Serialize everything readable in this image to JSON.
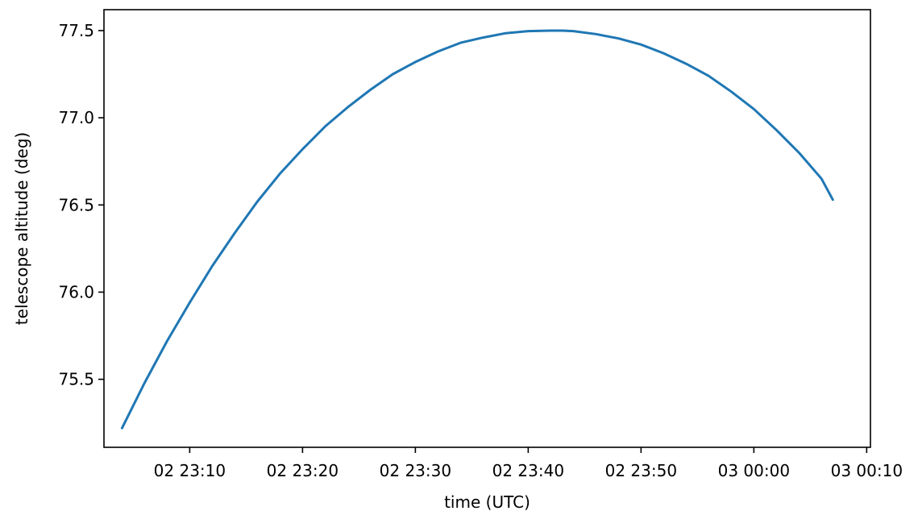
{
  "chart_data": {
    "type": "line",
    "title": "",
    "xlabel": "time (UTC)",
    "ylabel": "telescope altitude (deg)",
    "x_unit": "minutes",
    "xlim": [
      "02 23:02:24",
      "03 00:10:20"
    ],
    "ylim": [
      75.11,
      77.62
    ],
    "x_ticks": [
      "02 23:10",
      "02 23:20",
      "02 23:30",
      "02 23:40",
      "02 23:50",
      "03 00:00",
      "03 00:10"
    ],
    "y_ticks": [
      "75.5",
      "76.0",
      "76.5",
      "77.0",
      "77.5"
    ],
    "grid": false,
    "legend": "none",
    "series": [
      {
        "color": "#1f77b4",
        "x": [
          "02 23:04",
          "02 23:06",
          "02 23:08",
          "02 23:10",
          "02 23:12",
          "02 23:14",
          "02 23:16",
          "02 23:18",
          "02 23:20",
          "02 23:22",
          "02 23:24",
          "02 23:26",
          "02 23:28",
          "02 23:30",
          "02 23:32",
          "02 23:34",
          "02 23:36",
          "02 23:38",
          "02 23:40",
          "02 23:42",
          "02 23:43",
          "02 23:44",
          "02 23:46",
          "02 23:48",
          "02 23:50",
          "02 23:52",
          "02 23:54",
          "02 23:56",
          "02 23:58",
          "03 00:00",
          "03 00:02",
          "03 00:04",
          "03 00:06",
          "03 00:07"
        ],
        "values": [
          75.22,
          75.48,
          75.72,
          75.94,
          76.15,
          76.34,
          76.52,
          76.68,
          76.82,
          76.95,
          77.06,
          77.16,
          77.25,
          77.32,
          77.38,
          77.43,
          77.46,
          77.485,
          77.497,
          77.5,
          77.5,
          77.497,
          77.48,
          77.455,
          77.42,
          77.37,
          77.31,
          77.24,
          77.15,
          77.05,
          76.93,
          76.8,
          76.65,
          76.53
        ]
      }
    ]
  }
}
